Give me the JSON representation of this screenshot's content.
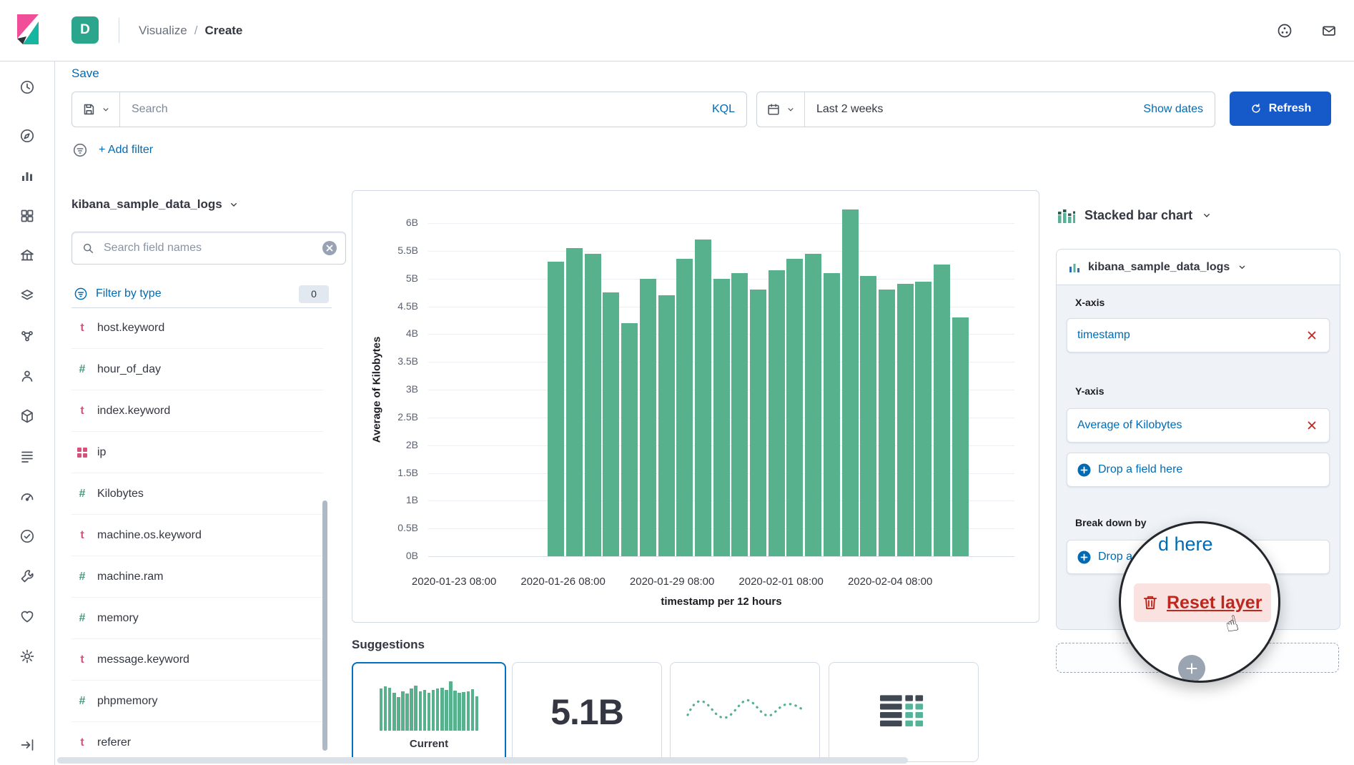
{
  "header": {
    "space_initial": "D",
    "breadcrumb_section": "Visualize",
    "breadcrumb_separator": "/",
    "breadcrumb_page": "Create"
  },
  "toolbar": {
    "save": "Save",
    "search_placeholder": "Search",
    "kql": "KQL",
    "time_range": "Last 2 weeks",
    "show_dates": "Show dates",
    "refresh": "Refresh",
    "add_filter": "+ Add filter"
  },
  "field_panel": {
    "index_pattern": "kibana_sample_data_logs",
    "search_placeholder": "Search field names",
    "filter_by_type": "Filter by type",
    "filter_count": "0",
    "fields": [
      {
        "type": "t",
        "name": "host.keyword"
      },
      {
        "type": "number",
        "name": "hour_of_day"
      },
      {
        "type": "t",
        "name": "index.keyword"
      },
      {
        "type": "ip",
        "name": "ip"
      },
      {
        "type": "number",
        "name": "Kilobytes"
      },
      {
        "type": "t",
        "name": "machine.os.keyword"
      },
      {
        "type": "number",
        "name": "machine.ram"
      },
      {
        "type": "number",
        "name": "memory"
      },
      {
        "type": "t",
        "name": "message.keyword"
      },
      {
        "type": "number",
        "name": "phpmemory"
      },
      {
        "type": "t",
        "name": "referer"
      }
    ]
  },
  "chart_data": {
    "type": "bar",
    "title": "",
    "xlabel": "timestamp per 12 hours",
    "ylabel": "Average of Kilobytes",
    "x_tick_labels": [
      "2020-01-23 08:00",
      "2020-01-26 08:00",
      "2020-01-29 08:00",
      "2020-02-01 08:00",
      "2020-02-04 08:00"
    ],
    "y_tick_labels": [
      "0B",
      "0.5B",
      "1B",
      "1.5B",
      "2B",
      "2.5B",
      "3B",
      "3.5B",
      "4B",
      "4.5B",
      "5B",
      "5.5B",
      "6B"
    ],
    "ylim": [
      0,
      6
    ],
    "unit": "B",
    "grid": true,
    "legend": "none",
    "bar_color": "#56B18C",
    "values": [
      5.3,
      5.55,
      5.45,
      4.75,
      4.2,
      5.0,
      4.7,
      5.35,
      5.7,
      5.0,
      5.1,
      4.8,
      5.15,
      5.35,
      5.45,
      5.1,
      6.25,
      5.05,
      4.8,
      4.9,
      4.95,
      5.25,
      4.3
    ]
  },
  "suggestions": {
    "title": "Suggestions",
    "items": [
      {
        "kind": "bar-chart",
        "label": "Current",
        "selected": true
      },
      {
        "kind": "metric",
        "value": "5.1B"
      },
      {
        "kind": "line-chart"
      },
      {
        "kind": "data-table"
      }
    ]
  },
  "config_panel": {
    "chart_type": "Stacked bar chart",
    "index_pattern": "kibana_sample_data_logs",
    "x_axis_label": "X-axis",
    "x_axis_value": "timestamp",
    "y_axis_label": "Y-axis",
    "y_axis_value": "Average of Kilobytes",
    "drop_field": "Drop a field here",
    "break_down_label": "Break down by",
    "reset_layer": "Reset layer"
  },
  "magnifier": {
    "fragment": "d here",
    "reset_layer": "Reset layer"
  },
  "icons": {
    "hand_cursor": "☝"
  },
  "colors": {
    "link_blue": "#006BB4",
    "refresh_blue": "#1659C9",
    "bar_green": "#56B18C",
    "danger_red": "#BD271E",
    "space_badge": "#2BA58C",
    "text": "#343741",
    "text_subdued": "#69707D",
    "border": "#D3DAE6",
    "panel_section_bg": "#EFF3F8"
  }
}
